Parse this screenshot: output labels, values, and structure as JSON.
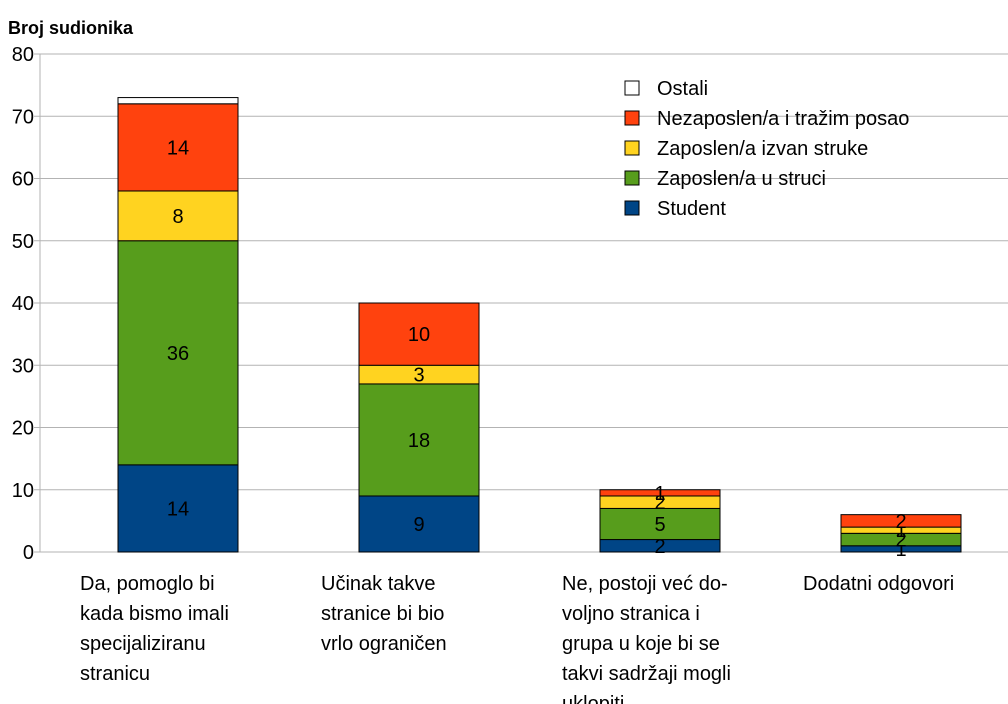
{
  "chart_data": {
    "type": "stacked_bar",
    "y_axis_title": "Broj sudionika",
    "categories": [
      [
        "Da, pomoglo bi",
        "kada bismo imali",
        "specijaliziranu",
        "stranicu"
      ],
      [
        "Učinak takve",
        "stranice  bi bio",
        "vrlo ograničen"
      ],
      [
        "Ne, postoji već do-",
        "voljno stranica i",
        "grupa u koje bi se",
        "takvi sadržaji mogli",
        "uklopiti"
      ],
      [
        "Dodatni odgovori"
      ]
    ],
    "series": [
      {
        "name": "Student",
        "color": "#004586",
        "values": [
          14,
          9,
          2,
          1
        ],
        "labels": true
      },
      {
        "name": "Zaposlen/a u struci",
        "color": "#579d1c",
        "values": [
          36,
          18,
          5,
          2
        ],
        "labels": true
      },
      {
        "name": "Zaposlen/a izvan struke",
        "color": "#ffd320",
        "values": [
          8,
          3,
          2,
          1
        ],
        "labels": true
      },
      {
        "name": "Nezaposlen/a i tražim posao",
        "color": "#ff420e",
        "values": [
          14,
          10,
          1,
          2
        ],
        "labels": true
      },
      {
        "name": "Ostali",
        "color": "#ffffff",
        "values": [
          1,
          0,
          0,
          0
        ],
        "labels": false
      }
    ],
    "ylim": [
      0,
      80
    ],
    "yticks": [
      0,
      10,
      20,
      30,
      40,
      50,
      60,
      70,
      80
    ],
    "grid": true,
    "legend": "top-right"
  }
}
